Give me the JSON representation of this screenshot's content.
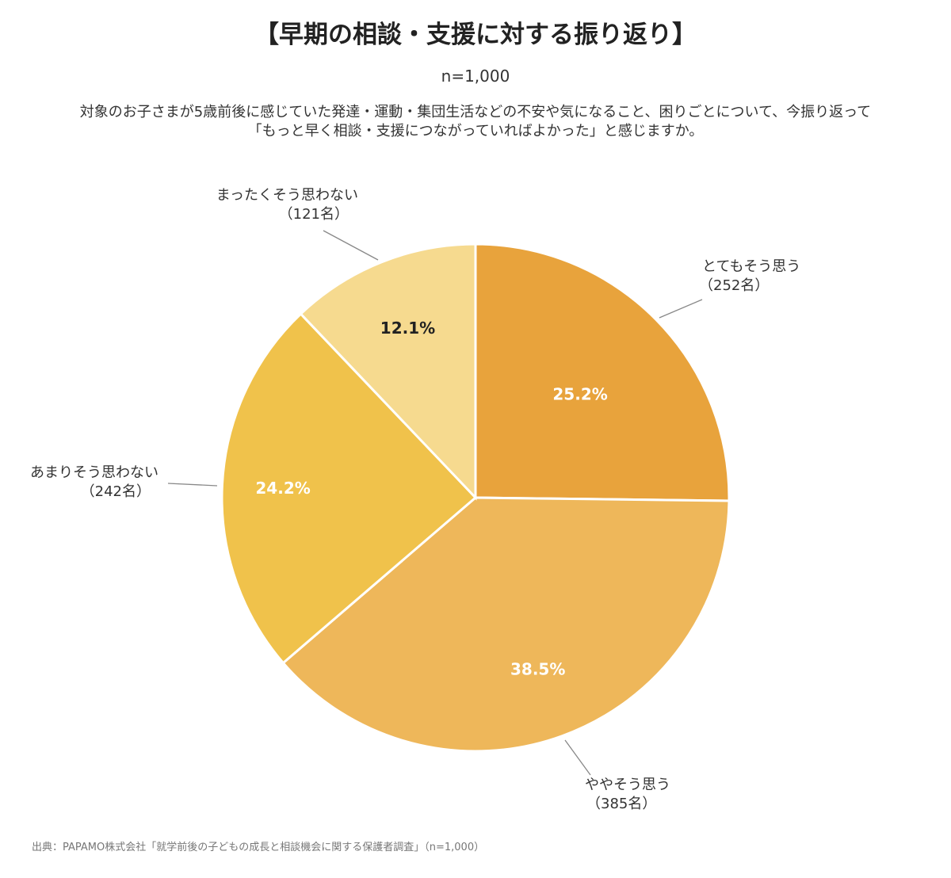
{
  "title": "【早期の相談・支援に対する振り返り】",
  "n_label": "n=1,000",
  "question": {
    "line1": "対象のお子さまが5歳前後に感じていた発達・運動・集団生活などの不安や気になること、困りごとについて、今振り返って",
    "line2": "「もっと早く相談・支援につながっていればよかった」と感じますか。"
  },
  "source": "出典：PAPAMO株式会社「就学前後の子どもの成長と相談機会に関する保護者調査」（n=1,000）",
  "chart_data": {
    "type": "pie",
    "start": "12 o'clock, clockwise",
    "slices": [
      {
        "label": "とてもそう思う",
        "count": "（252名）",
        "value": 25.2,
        "pct_label": "25.2%",
        "color": "#E8A33C",
        "pct_color": "#ffffff"
      },
      {
        "label": "ややそう思う",
        "count": "（385名）",
        "value": 38.5,
        "pct_label": "38.5%",
        "color": "#EEB75A",
        "pct_color": "#ffffff"
      },
      {
        "label": "あまりそう思わない",
        "count": "（242名）",
        "value": 24.2,
        "pct_label": "24.2%",
        "color": "#F0C24B",
        "pct_color": "#ffffff"
      },
      {
        "label": "まったくそう思わない",
        "count": "（121名）",
        "value": 12.1,
        "pct_label": "12.1%",
        "color": "#F6DA8F",
        "pct_color": "#222222"
      }
    ]
  }
}
